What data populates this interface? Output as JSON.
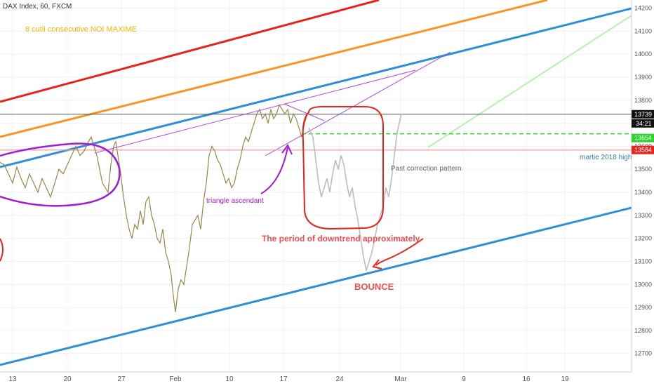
{
  "chart_data": {
    "type": "line",
    "title": "DAX Index, 60, FXCM",
    "annotation_title": "8 cutii consecutive NOI MAXIME",
    "x_ticks": [
      "13",
      "20",
      "27",
      "Feb",
      "10",
      "17",
      "24",
      "Mar",
      "9",
      "16",
      "19"
    ],
    "y_ticks": [
      14200,
      14100,
      14000,
      13900,
      13800,
      13700,
      13600,
      13500,
      13400,
      13300,
      13200,
      13100,
      13000,
      12900,
      12800,
      12700
    ],
    "ylim": [
      12620,
      14235
    ],
    "price_labels": {
      "current": "13739",
      "timer": "34:21",
      "green_level": "13654",
      "red_level": "13584"
    },
    "levels": {
      "current": 13739,
      "green_dashed": 13654,
      "red_high": 13584
    },
    "annotations": {
      "martie": "martie 2018 high",
      "triangle": "triangle ascendant",
      "past_pattern": "Past correction pattern",
      "downtrend": "The period of downtrend approximately",
      "bounce": "BOUNCE"
    },
    "price_series_points": [
      [
        0,
        13530
      ],
      [
        6,
        13520
      ],
      [
        12,
        13480
      ],
      [
        18,
        13440
      ],
      [
        24,
        13510
      ],
      [
        30,
        13460
      ],
      [
        36,
        13420
      ],
      [
        42,
        13480
      ],
      [
        48,
        13440
      ],
      [
        54,
        13400
      ],
      [
        60,
        13460
      ],
      [
        66,
        13420
      ],
      [
        72,
        13380
      ],
      [
        78,
        13440
      ],
      [
        84,
        13500
      ],
      [
        90,
        13480
      ],
      [
        96,
        13520
      ],
      [
        102,
        13560
      ],
      [
        108,
        13600
      ],
      [
        114,
        13560
      ],
      [
        120,
        13580
      ],
      [
        126,
        13620
      ],
      [
        130,
        13640
      ],
      [
        134,
        13600
      ],
      [
        138,
        13560
      ],
      [
        142,
        13500
      ],
      [
        146,
        13440
      ],
      [
        150,
        13420
      ],
      [
        154,
        13400
      ],
      [
        158,
        13520
      ],
      [
        162,
        13600
      ],
      [
        165,
        13620
      ],
      [
        168,
        13560
      ],
      [
        172,
        13480
      ],
      [
        176,
        13380
      ],
      [
        180,
        13300
      ],
      [
        184,
        13240
      ],
      [
        188,
        13200
      ],
      [
        192,
        13260
      ],
      [
        196,
        13240
      ],
      [
        200,
        13320
      ],
      [
        204,
        13260
      ],
      [
        208,
        13360
      ],
      [
        212,
        13380
      ],
      [
        216,
        13300
      ],
      [
        220,
        13260
      ],
      [
        224,
        13200
      ],
      [
        228,
        13180
      ],
      [
        232,
        13240
      ],
      [
        236,
        13140
      ],
      [
        240,
        13100
      ],
      [
        244,
        13040
      ],
      [
        247,
        12950
      ],
      [
        250,
        12880
      ],
      [
        254,
        12980
      ],
      [
        258,
        13020
      ],
      [
        262,
        13000
      ],
      [
        266,
        13080
      ],
      [
        270,
        13160
      ],
      [
        274,
        13260
      ],
      [
        278,
        13280
      ],
      [
        282,
        13300
      ],
      [
        286,
        13240
      ],
      [
        290,
        13360
      ],
      [
        294,
        13440
      ],
      [
        298,
        13560
      ],
      [
        302,
        13600
      ],
      [
        306,
        13580
      ],
      [
        310,
        13540
      ],
      [
        314,
        13520
      ],
      [
        318,
        13480
      ],
      [
        322,
        13440
      ],
      [
        326,
        13460
      ],
      [
        330,
        13420
      ],
      [
        334,
        13440
      ],
      [
        338,
        13500
      ],
      [
        342,
        13540
      ],
      [
        346,
        13600
      ],
      [
        350,
        13640
      ],
      [
        354,
        13620
      ],
      [
        358,
        13660
      ],
      [
        362,
        13700
      ],
      [
        366,
        13740
      ],
      [
        370,
        13760
      ],
      [
        374,
        13720
      ],
      [
        378,
        13740
      ],
      [
        382,
        13700
      ],
      [
        386,
        13760
      ],
      [
        390,
        13720
      ],
      [
        394,
        13740
      ],
      [
        398,
        13780
      ],
      [
        402,
        13760
      ],
      [
        406,
        13740
      ],
      [
        410,
        13760
      ],
      [
        414,
        13700
      ],
      [
        418,
        13740
      ],
      [
        422,
        13720
      ],
      [
        426,
        13680
      ],
      [
        430,
        13640
      ],
      [
        434,
        13700
      ],
      [
        438,
        13740
      ]
    ],
    "projection_points": [
      [
        440,
        13680
      ],
      [
        446,
        13640
      ],
      [
        450,
        13540
      ],
      [
        454,
        13440
      ],
      [
        458,
        13380
      ],
      [
        462,
        13420
      ],
      [
        466,
        13460
      ],
      [
        470,
        13400
      ],
      [
        474,
        13480
      ],
      [
        478,
        13540
      ],
      [
        482,
        13500
      ],
      [
        486,
        13560
      ],
      [
        490,
        13520
      ],
      [
        494,
        13440
      ],
      [
        498,
        13380
      ],
      [
        502,
        13420
      ],
      [
        506,
        13340
      ],
      [
        510,
        13280
      ],
      [
        514,
        13200
      ],
      [
        518,
        13120
      ],
      [
        522,
        13060
      ],
      [
        526,
        13100
      ],
      [
        530,
        13140
      ],
      [
        534,
        13200
      ],
      [
        538,
        13260
      ],
      [
        542,
        13300
      ],
      [
        546,
        13340
      ],
      [
        550,
        13420
      ],
      [
        554,
        13380
      ],
      [
        558,
        13460
      ],
      [
        562,
        13560
      ],
      [
        566,
        13660
      ],
      [
        572,
        13740
      ]
    ]
  }
}
